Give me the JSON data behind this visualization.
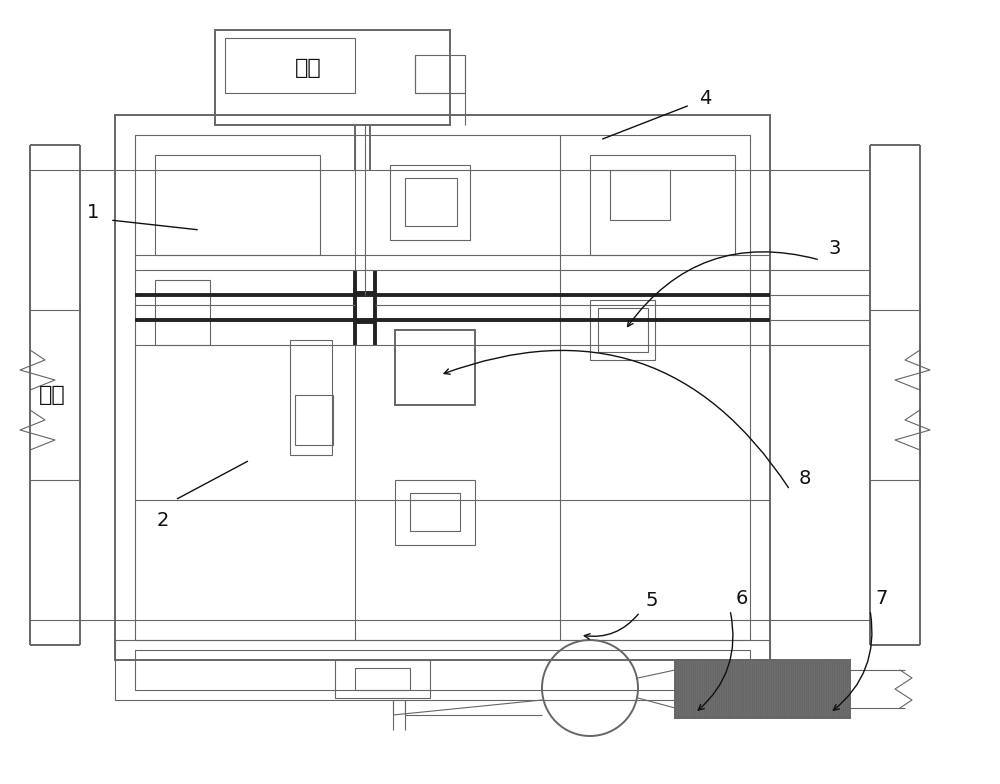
{
  "bg_color": "#ffffff",
  "line_color": "#666666",
  "thick_color": "#222222",
  "label_color": "#111111",
  "entry_label": "入口",
  "pit_label": "地坑",
  "motor_color": "#777777",
  "lw_thin": 0.8,
  "lw_med": 1.4,
  "lw_thick": 2.8,
  "label_fs": 14
}
